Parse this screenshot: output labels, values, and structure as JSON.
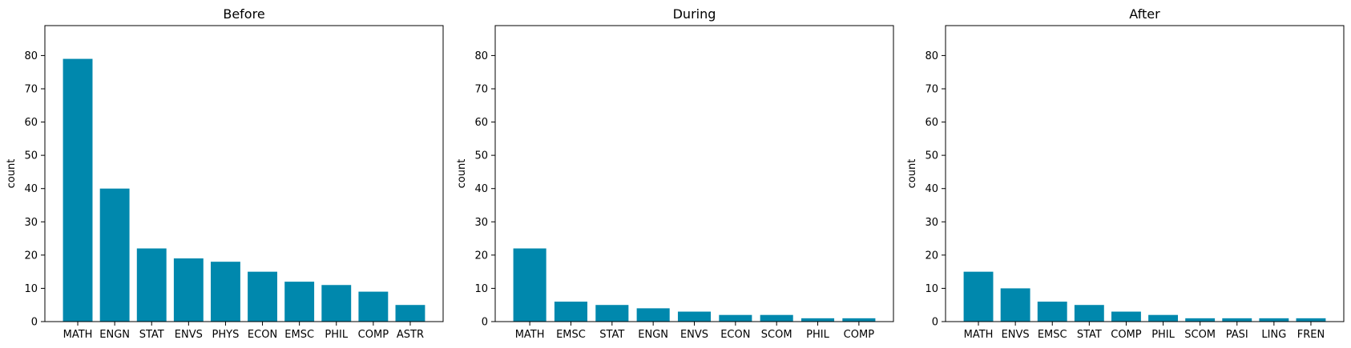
{
  "chart_data": [
    {
      "type": "bar",
      "title": "Before",
      "xlabel": "",
      "ylabel": "count",
      "ylim": [
        0,
        89
      ],
      "yticks": [
        0,
        10,
        20,
        30,
        40,
        50,
        60,
        70,
        80
      ],
      "categories": [
        "MATH",
        "ENGN",
        "STAT",
        "ENVS",
        "PHYS",
        "ECON",
        "EMSC",
        "PHIL",
        "COMP",
        "ASTR"
      ],
      "values": [
        79,
        40,
        22,
        19,
        18,
        15,
        12,
        11,
        9,
        5
      ],
      "color": "#0088ad"
    },
    {
      "type": "bar",
      "title": "During",
      "xlabel": "",
      "ylabel": "count",
      "ylim": [
        0,
        89
      ],
      "yticks": [
        0,
        10,
        20,
        30,
        40,
        50,
        60,
        70,
        80
      ],
      "categories": [
        "MATH",
        "EMSC",
        "STAT",
        "ENGN",
        "ENVS",
        "ECON",
        "SCOM",
        "PHIL",
        "COMP"
      ],
      "values": [
        22,
        6,
        5,
        4,
        3,
        2,
        2,
        1,
        1
      ],
      "color": "#0088ad"
    },
    {
      "type": "bar",
      "title": "After",
      "xlabel": "",
      "ylabel": "count",
      "ylim": [
        0,
        89
      ],
      "yticks": [
        0,
        10,
        20,
        30,
        40,
        50,
        60,
        70,
        80
      ],
      "categories": [
        "MATH",
        "ENVS",
        "EMSC",
        "STAT",
        "COMP",
        "PHIL",
        "SCOM",
        "PASI",
        "LING",
        "FREN"
      ],
      "values": [
        15,
        10,
        6,
        5,
        3,
        2,
        1,
        1,
        1,
        1
      ],
      "color": "#0088ad"
    }
  ]
}
